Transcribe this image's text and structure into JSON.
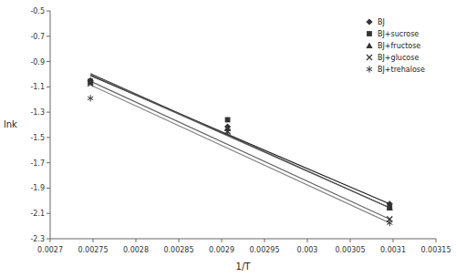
{
  "chart_data": {
    "type": "scatter",
    "xlabel": "1/T",
    "ylabel": "lnk",
    "xlim": [
      0.0027,
      0.00315
    ],
    "ylim": [
      -2.3,
      -0.5
    ],
    "xticks": [
      0.0027,
      0.00275,
      0.0028,
      0.00285,
      0.0029,
      0.00295,
      0.003,
      0.00305,
      0.0031,
      0.00315
    ],
    "yticks": [
      -2.3,
      -2.1,
      -1.9,
      -1.7,
      -1.5,
      -1.3,
      -1.1,
      -0.9,
      -0.7,
      -0.5
    ],
    "grid": false,
    "legend": "upper right",
    "series": [
      {
        "name": "BJ",
        "marker": "diamond",
        "color": "#333333",
        "x": [
          0.002747,
          0.002907,
          0.003096
        ],
        "values": [
          -1.05,
          -1.415,
          -2.025
        ],
        "line": {
          "color": "#222222",
          "x": [
            0.002747,
            0.003096
          ],
          "values": [
            -1.01,
            -2.025
          ]
        }
      },
      {
        "name": "BJ+sucrose",
        "marker": "square",
        "color": "#333333",
        "x": [
          0.002747,
          0.002907,
          0.003096
        ],
        "values": [
          -1.055,
          -1.36,
          -2.055
        ],
        "line": {
          "color": "#444444",
          "x": [
            0.002747,
            0.003096
          ],
          "values": [
            -0.995,
            -2.055
          ]
        }
      },
      {
        "name": "BJ+fructose",
        "marker": "triangle",
        "color": "#333333",
        "x": [
          0.002747,
          0.002907,
          0.003096
        ],
        "values": [
          -1.065,
          -1.43,
          -2.055
        ],
        "line": {
          "color": "#555555",
          "x": [
            0.002747,
            0.003096
          ],
          "values": [
            -1.005,
            -2.055
          ]
        }
      },
      {
        "name": "BJ+glucose",
        "marker": "x",
        "color": "#333333",
        "x": [
          0.002747,
          0.002907,
          0.003096
        ],
        "values": [
          -1.075,
          -1.455,
          -2.145
        ],
        "line": {
          "color": "#666666",
          "x": [
            0.002747,
            0.003096
          ],
          "values": [
            -1.055,
            -2.145
          ]
        }
      },
      {
        "name": "BJ+trehalose",
        "marker": "asterisk",
        "color": "#333333",
        "x": [
          0.002747,
          0.002907,
          0.003096
        ],
        "values": [
          -1.19,
          -1.455,
          -2.175
        ],
        "line": {
          "color": "#888888",
          "x": [
            0.002747,
            0.003096
          ],
          "values": [
            -1.085,
            -2.175
          ]
        }
      }
    ]
  }
}
